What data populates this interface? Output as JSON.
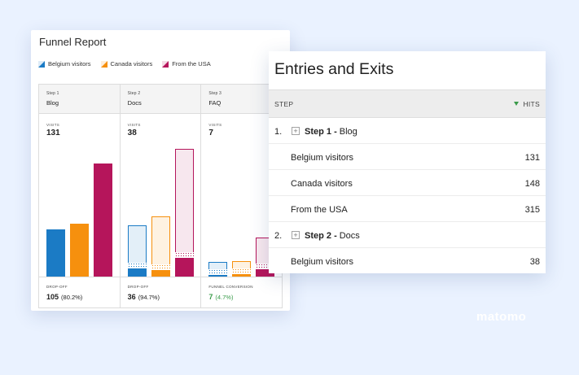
{
  "funnel": {
    "title": "Funnel Report",
    "legend": [
      {
        "label": "Belgium visitors",
        "color": "#1b7bc5"
      },
      {
        "label": "Canada visitors",
        "color": "#f6900e"
      },
      {
        "label": "From the USA",
        "color": "#b5155b"
      }
    ],
    "steps": [
      {
        "step_number": "Step 1",
        "name": "Blog",
        "visits_label": "VISITS",
        "visits": "131",
        "footer_label": "DROP-OFF",
        "footer_value": "105",
        "footer_pct": "(80.2%)",
        "bars": [
          {
            "total": 131,
            "progressed": 131
          },
          {
            "total": 148,
            "progressed": 148
          },
          {
            "total": 315,
            "progressed": 315
          }
        ]
      },
      {
        "step_number": "Step 2",
        "name": "Docs",
        "visits_label": "VISITS",
        "visits": "38",
        "footer_label": "DROP-OFF",
        "footer_value": "36",
        "footer_pct": "(94.7%)",
        "bars": [
          {
            "total": 143,
            "progressed": 23
          },
          {
            "total": 167,
            "progressed": 19
          },
          {
            "total": 355,
            "progressed": 52
          }
        ]
      },
      {
        "step_number": "Step 3",
        "name": "FAQ",
        "visits_label": "VISITS",
        "visits": "7",
        "footer_label": "FUNNEL CONVERSION",
        "footer_value": "7",
        "footer_pct": "(4.7%)",
        "bars": [
          {
            "total": 40,
            "progressed": 5
          },
          {
            "total": 44,
            "progressed": 6
          },
          {
            "total": 108,
            "progressed": 20
          }
        ]
      }
    ]
  },
  "entries": {
    "title": "Entries and Exits",
    "columns": {
      "step": "STEP",
      "hits": "HITS"
    },
    "rows": [
      {
        "type": "step",
        "index": "1.",
        "step": "Step 1 -",
        "name": "Blog",
        "hits": ""
      },
      {
        "type": "sub",
        "label": "Belgium visitors",
        "hits": "131"
      },
      {
        "type": "sub",
        "label": "Canada visitors",
        "hits": "148"
      },
      {
        "type": "sub",
        "label": "From the USA",
        "hits": "315"
      },
      {
        "type": "step",
        "index": "2.",
        "step": "Step 2 -",
        "name": "Docs",
        "hits": ""
      },
      {
        "type": "sub",
        "label": "Belgium visitors",
        "hits": "38"
      }
    ]
  },
  "brand": "matomo"
}
